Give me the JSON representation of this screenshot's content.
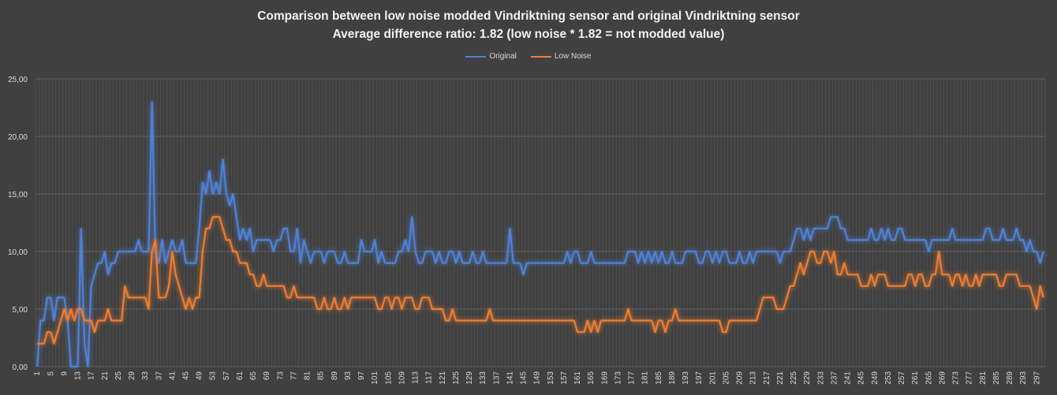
{
  "chart_data": {
    "type": "line",
    "title": "Comparison between low noise modded Vindriktning sensor and original Vindriktning sensor",
    "subtitle": "Average difference ratio: 1.82 (low noise * 1.82 = not modded value)",
    "xlabel": "",
    "ylabel": "",
    "ylim": [
      0,
      25
    ],
    "yticks": [
      "0,00",
      "5,00",
      "10,00",
      "15,00",
      "20,00",
      "25,00"
    ],
    "x_tick_step": 4,
    "grid": true,
    "legend": "top",
    "series": [
      {
        "name": "Original",
        "color": "#4f81d6",
        "values": [
          0,
          4,
          4,
          6,
          6,
          4,
          6,
          6,
          6,
          4,
          0,
          0,
          0,
          12,
          2,
          0,
          7,
          8,
          9,
          9,
          10,
          8,
          9,
          9,
          10,
          10,
          10,
          10,
          10,
          10,
          11,
          10,
          10,
          10,
          23,
          10,
          9,
          11,
          9,
          10,
          11,
          10,
          10,
          11,
          9,
          9,
          9,
          9,
          12,
          16,
          15,
          17,
          15,
          16,
          15,
          18,
          15,
          14,
          15,
          13,
          11,
          12,
          11,
          12,
          10,
          11,
          11,
          11,
          11,
          11,
          10,
          11,
          11,
          12,
          12,
          10,
          10,
          12,
          9,
          11,
          10,
          9,
          10,
          10,
          10,
          9,
          10,
          10,
          10,
          9,
          9,
          10,
          9,
          9,
          9,
          9,
          11,
          10,
          10,
          10,
          11,
          9,
          10,
          9,
          9,
          9,
          9,
          10,
          10,
          11,
          10,
          13,
          10,
          9,
          9,
          10,
          10,
          10,
          9,
          10,
          9,
          9,
          10,
          10,
          9,
          10,
          9,
          9,
          9,
          10,
          9,
          9,
          10,
          9,
          9,
          9,
          9,
          9,
          9,
          9,
          12,
          9,
          9,
          9,
          8,
          9,
          9,
          9,
          9,
          9,
          9,
          9,
          9,
          9,
          9,
          9,
          9,
          10,
          9,
          10,
          10,
          9,
          9,
          9,
          10,
          9,
          9,
          9,
          9,
          9,
          9,
          9,
          9,
          9,
          9,
          10,
          10,
          10,
          9,
          10,
          9,
          10,
          9,
          10,
          9,
          10,
          9,
          9,
          10,
          9,
          9,
          9,
          10,
          10,
          10,
          10,
          9,
          9,
          10,
          10,
          9,
          10,
          9,
          10,
          10,
          9,
          9,
          9,
          10,
          9,
          9,
          10,
          9,
          10,
          10,
          10,
          10,
          10,
          10,
          10,
          9,
          10,
          10,
          10,
          11,
          12,
          12,
          11,
          12,
          11,
          12,
          12,
          12,
          12,
          12,
          13,
          13,
          13,
          12,
          12,
          11,
          11,
          11,
          11,
          11,
          11,
          11,
          12,
          11,
          11,
          12,
          11,
          12,
          11,
          11,
          12,
          12,
          11,
          11,
          11,
          11,
          11,
          11,
          11,
          10,
          11,
          11,
          11,
          11,
          11,
          11,
          12,
          11,
          11,
          11,
          11,
          11,
          11,
          11,
          11,
          11,
          12,
          12,
          11,
          11,
          11,
          12,
          11,
          11,
          11,
          12,
          11,
          11,
          10,
          11,
          10,
          10,
          9,
          10
        ]
      },
      {
        "name": "Low Noise",
        "color": "#ed7d31",
        "values": [
          2,
          2,
          2,
          3,
          3,
          2,
          3,
          4,
          5,
          4,
          5,
          4,
          5,
          5,
          4,
          4,
          4,
          3,
          4,
          4,
          4,
          5,
          4,
          4,
          4,
          4,
          7,
          6,
          6,
          6,
          6,
          6,
          6,
          5,
          10,
          11,
          6,
          6,
          6,
          7,
          10,
          8,
          7,
          6,
          5,
          6,
          5,
          6,
          6,
          10,
          12,
          12,
          13,
          13,
          13,
          12,
          11,
          11,
          10,
          10,
          9,
          9,
          9,
          8,
          8,
          7,
          7,
          8,
          7,
          7,
          7,
          7,
          7,
          7,
          6,
          6,
          7,
          6,
          6,
          6,
          6,
          6,
          6,
          5,
          5,
          6,
          5,
          5,
          6,
          5,
          5,
          6,
          5,
          6,
          6,
          6,
          6,
          6,
          6,
          6,
          6,
          5,
          5,
          6,
          6,
          5,
          6,
          6,
          5,
          6,
          6,
          6,
          5,
          5,
          6,
          6,
          6,
          5,
          5,
          5,
          5,
          4,
          4,
          5,
          4,
          4,
          4,
          4,
          4,
          4,
          4,
          4,
          4,
          4,
          5,
          4,
          4,
          4,
          4,
          4,
          4,
          4,
          4,
          4,
          4,
          4,
          4,
          4,
          4,
          4,
          4,
          4,
          4,
          4,
          4,
          4,
          4,
          4,
          4,
          4,
          3,
          3,
          3,
          4,
          3,
          4,
          3,
          4,
          4,
          4,
          4,
          4,
          4,
          4,
          4,
          5,
          4,
          4,
          4,
          4,
          4,
          4,
          4,
          3,
          4,
          4,
          3,
          4,
          4,
          5,
          4,
          4,
          4,
          4,
          4,
          4,
          4,
          4,
          4,
          4,
          4,
          4,
          4,
          3,
          3,
          4,
          4,
          4,
          4,
          4,
          4,
          4,
          4,
          4,
          5,
          6,
          6,
          6,
          6,
          5,
          5,
          5,
          6,
          7,
          7,
          8,
          9,
          8,
          9,
          10,
          10,
          9,
          9,
          10,
          10,
          9,
          10,
          8,
          8,
          9,
          8,
          8,
          8,
          8,
          7,
          7,
          7,
          8,
          7,
          8,
          8,
          8,
          7,
          7,
          7,
          7,
          7,
          7,
          8,
          8,
          7,
          8,
          8,
          7,
          7,
          8,
          8,
          10,
          8,
          8,
          8,
          7,
          8,
          8,
          7,
          8,
          7,
          7,
          8,
          7,
          8,
          8,
          8,
          8,
          8,
          7,
          7,
          8,
          8,
          8,
          8,
          7,
          7,
          7,
          7,
          6,
          5,
          7,
          6
        ]
      }
    ]
  }
}
